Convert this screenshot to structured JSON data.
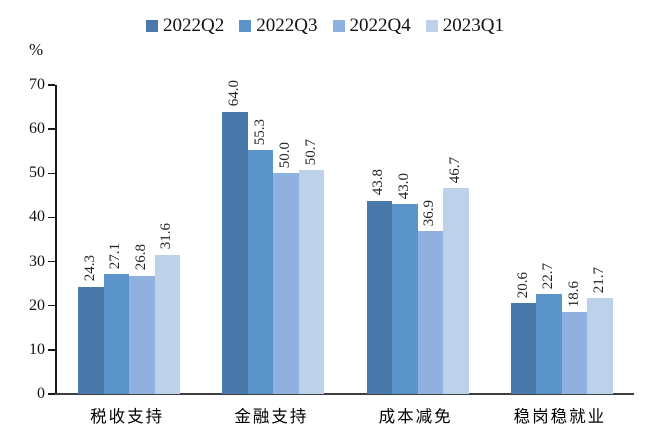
{
  "chart_data": {
    "type": "bar",
    "title": "",
    "xlabel": "",
    "ylabel": "%",
    "ylim": [
      0,
      70
    ],
    "ytick_step": 10,
    "grid": false,
    "legend_position": "top-center",
    "value_labels": "rotated-90-above-bars",
    "value_label_decimals": 1,
    "categories": [
      "税收支持",
      "金融支持",
      "成本减免",
      "稳岗稳就业"
    ],
    "series": [
      {
        "name": "2022Q2",
        "color": "#4A78AA",
        "values": [
          24.3,
          64.0,
          43.8,
          20.6
        ]
      },
      {
        "name": "2022Q3",
        "color": "#5B94C9",
        "values": [
          27.1,
          55.3,
          43.0,
          22.7
        ]
      },
      {
        "name": "2022Q4",
        "color": "#8EB2DD",
        "values": [
          26.8,
          50.0,
          36.9,
          18.6
        ]
      },
      {
        "name": "2023Q1",
        "color": "#BDD1EA",
        "values": [
          31.6,
          50.7,
          46.7,
          21.7
        ]
      }
    ],
    "axis_color": "#1a1a1a",
    "x_axis_color": "#3f3f3f"
  }
}
